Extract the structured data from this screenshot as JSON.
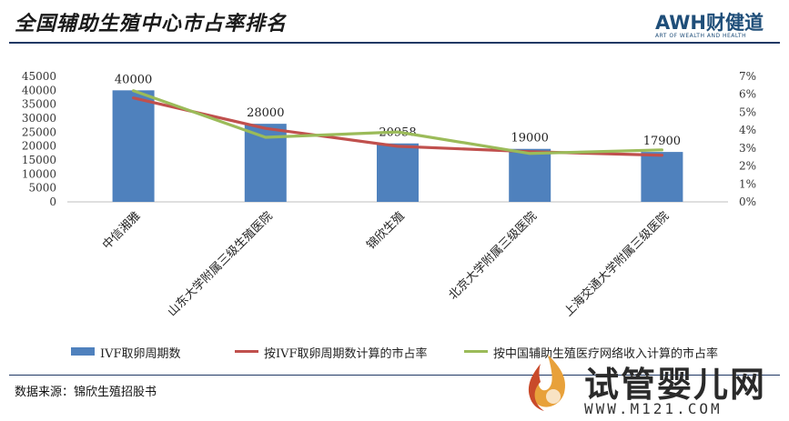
{
  "header": {
    "title": "全国辅助生殖中心市占率排名",
    "brand": "AWH财健道",
    "brand_sub": "ART OF WEALTH AND HEALTH"
  },
  "chart_data": {
    "type": "bar",
    "categories": [
      "中信湘雅",
      "山东大学附属三级生殖医院",
      "锦欣生殖",
      "北京大学附属三级医院",
      "上海交通大学附属三级医院"
    ],
    "series": [
      {
        "name": "IVF取卵周期数",
        "type": "bar",
        "axis": "left",
        "values": [
          40000,
          28000,
          20958,
          19000,
          17900
        ],
        "color": "#4f81bd"
      },
      {
        "name": "按IVF取卵周期数计算的市占率",
        "type": "line",
        "axis": "right",
        "values": [
          5.8,
          4.1,
          3.1,
          2.8,
          2.6
        ],
        "color": "#c0504d"
      },
      {
        "name": "按中国辅助生殖医疗网络收入计算的市占率",
        "type": "line",
        "axis": "right",
        "values": [
          6.2,
          3.6,
          3.9,
          2.7,
          2.9
        ],
        "color": "#9bbb59"
      }
    ],
    "data_labels": [
      "40000",
      "28000",
      "20958",
      "19000",
      "17900"
    ],
    "y_left": {
      "ylim": [
        0,
        45000
      ],
      "ticks": [
        "0",
        "5000",
        "10000",
        "15000",
        "20000",
        "25000",
        "30000",
        "35000",
        "40000",
        "45000"
      ]
    },
    "y_right": {
      "ylim": [
        0,
        7
      ],
      "unit": "%",
      "ticks": [
        "0%",
        "1%",
        "2%",
        "3%",
        "4%",
        "5%",
        "6%",
        "7%"
      ]
    },
    "grid": false,
    "legend": "bottom"
  },
  "footer": {
    "source": "数据来源：锦欣生殖招股书"
  },
  "watermark": {
    "name": "试管婴儿网",
    "url": "WWW.M121.COM"
  }
}
